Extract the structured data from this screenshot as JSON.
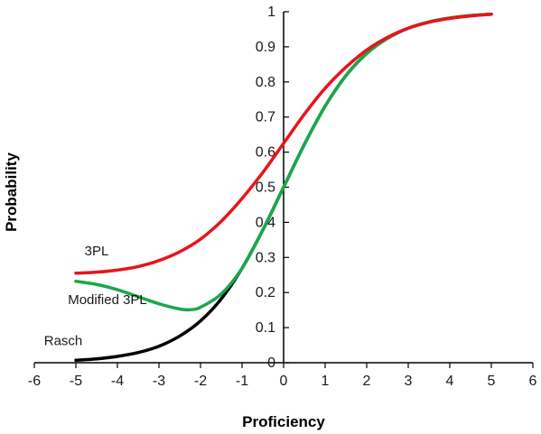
{
  "chart_data": {
    "type": "line",
    "title": "",
    "xlabel": "Proficiency",
    "ylabel": "Probability",
    "xlim": [
      -6,
      6
    ],
    "ylim": [
      0,
      1
    ],
    "xticks": [
      -6,
      -5,
      -4,
      -3,
      -2,
      -1,
      0,
      1,
      2,
      3,
      4,
      5,
      6
    ],
    "yticks": [
      0,
      0.1,
      0.2,
      0.3,
      0.4,
      0.5,
      0.6,
      0.7,
      0.8,
      0.9,
      1
    ],
    "grid": false,
    "legend": "none",
    "series": [
      {
        "name": "Rasch",
        "color": "#000000",
        "x": [
          -5,
          -4.5,
          -4,
          -3.5,
          -3,
          -2.5,
          -2,
          -1.5,
          -1,
          -0.5,
          0,
          0.5,
          1,
          1.5,
          2,
          2.5,
          3,
          3.5,
          4,
          4.5,
          5
        ],
        "y": [
          0.007,
          0.011,
          0.018,
          0.029,
          0.047,
          0.076,
          0.119,
          0.182,
          0.269,
          0.378,
          0.5,
          0.622,
          0.731,
          0.818,
          0.881,
          0.924,
          0.953,
          0.971,
          0.982,
          0.989,
          0.993
        ]
      },
      {
        "name": "Modified 3PL",
        "color": "#1aa84a",
        "x": [
          -5,
          -4.5,
          -4,
          -3.5,
          -3,
          -2.5,
          -2.25,
          -2,
          -1.5,
          -1,
          -0.5,
          0,
          0.5,
          1,
          1.5,
          2,
          2.5,
          3,
          3.5,
          4,
          4.5,
          5
        ],
        "y": [
          0.232,
          0.223,
          0.208,
          0.188,
          0.168,
          0.153,
          0.151,
          0.158,
          0.196,
          0.269,
          0.378,
          0.5,
          0.622,
          0.731,
          0.818,
          0.881,
          0.924,
          0.953,
          0.971,
          0.982,
          0.989,
          0.993
        ]
      },
      {
        "name": "3PL",
        "color": "#e8141c",
        "x": [
          -5,
          -4.5,
          -4,
          -3.5,
          -3,
          -2.5,
          -2,
          -1.5,
          -1,
          -0.5,
          0,
          0.5,
          1,
          1.5,
          2,
          2.5,
          3,
          3.5,
          4,
          4.5,
          5
        ],
        "y": [
          0.255,
          0.258,
          0.264,
          0.274,
          0.291,
          0.316,
          0.352,
          0.403,
          0.468,
          0.542,
          0.625,
          0.708,
          0.782,
          0.842,
          0.891,
          0.927,
          0.953,
          0.97,
          0.981,
          0.988,
          0.993
        ]
      }
    ]
  }
}
